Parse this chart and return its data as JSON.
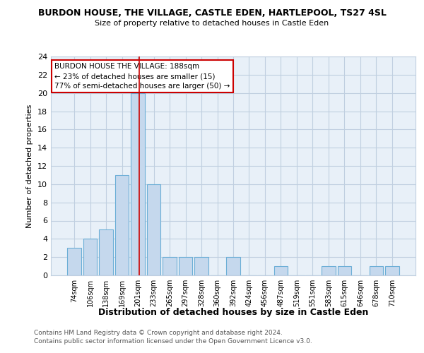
{
  "title": "BURDON HOUSE, THE VILLAGE, CASTLE EDEN, HARTLEPOOL, TS27 4SL",
  "subtitle": "Size of property relative to detached houses in Castle Eden",
  "xlabel": "Distribution of detached houses by size in Castle Eden",
  "ylabel": "Number of detached properties",
  "bar_labels": [
    "74sqm",
    "106sqm",
    "138sqm",
    "169sqm",
    "201sqm",
    "233sqm",
    "265sqm",
    "297sqm",
    "328sqm",
    "360sqm",
    "392sqm",
    "424sqm",
    "456sqm",
    "487sqm",
    "519sqm",
    "551sqm",
    "583sqm",
    "615sqm",
    "646sqm",
    "678sqm",
    "710sqm"
  ],
  "bar_values": [
    3,
    4,
    5,
    11,
    20,
    10,
    2,
    2,
    2,
    0,
    2,
    0,
    0,
    1,
    0,
    0,
    1,
    1,
    0,
    1,
    1
  ],
  "bar_color": "#c5d8ed",
  "bar_edge_color": "#6baed6",
  "ylim": [
    0,
    24
  ],
  "yticks": [
    0,
    2,
    4,
    6,
    8,
    10,
    12,
    14,
    16,
    18,
    20,
    22,
    24
  ],
  "red_line_x": 4.07,
  "annotation_text": "BURDON HOUSE THE VILLAGE: 188sqm\n← 23% of detached houses are smaller (15)\n77% of semi-detached houses are larger (50) →",
  "annotation_box_color": "#ffffff",
  "annotation_box_edge": "#cc0000",
  "grid_color": "#c0cfe0",
  "bg_color": "#e8f0f8",
  "footnote1": "Contains HM Land Registry data © Crown copyright and database right 2024.",
  "footnote2": "Contains public sector information licensed under the Open Government Licence v3.0."
}
